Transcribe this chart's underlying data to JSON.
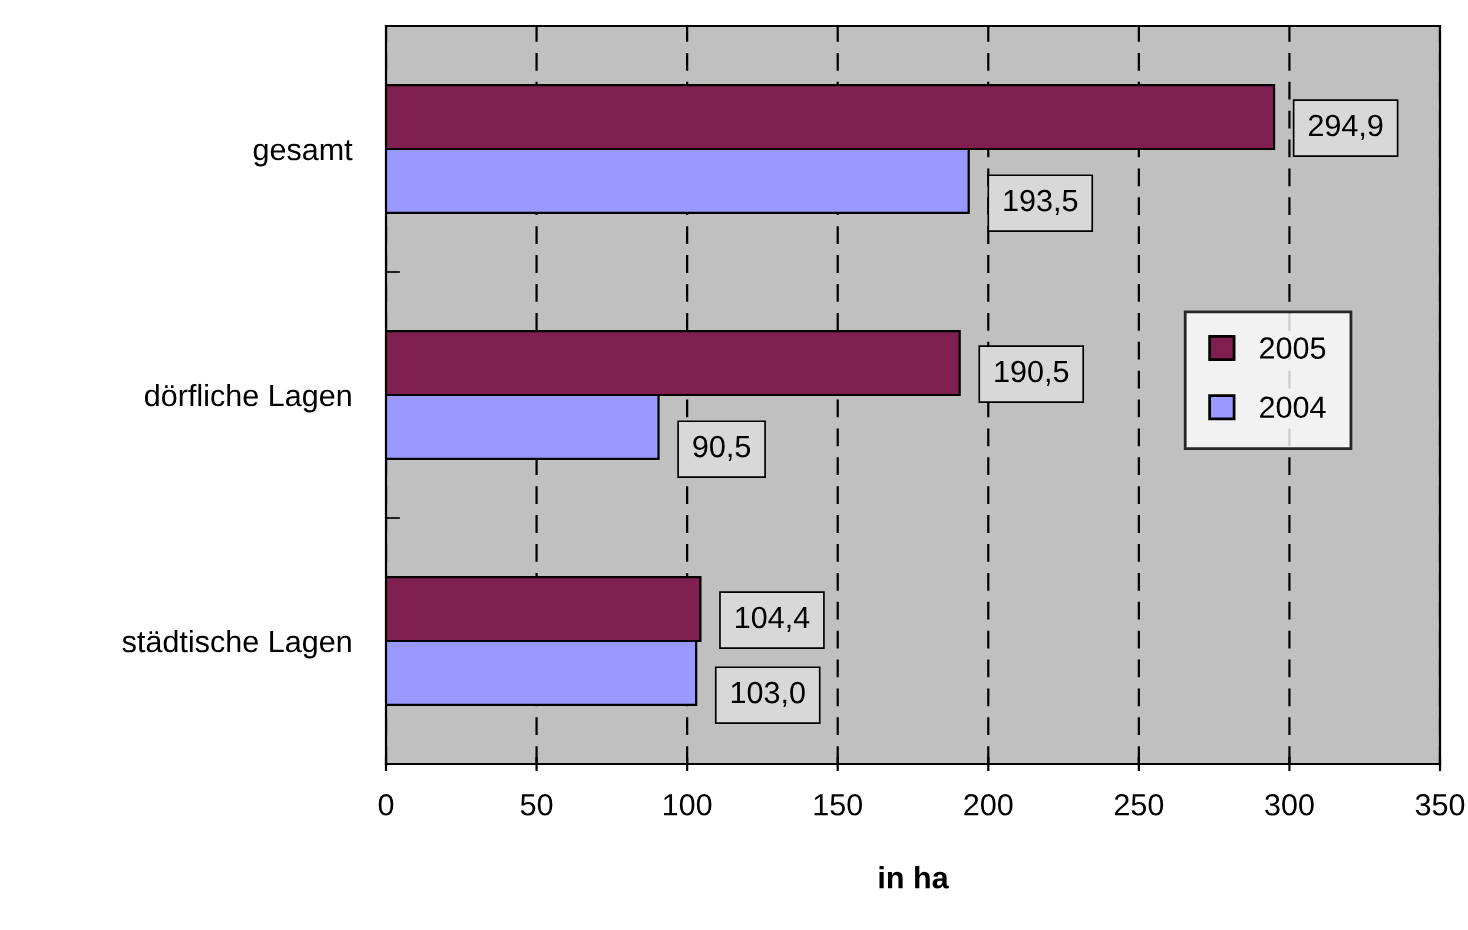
{
  "chart_data": {
    "type": "bar",
    "orientation": "horizontal",
    "categories": [
      "gesamt",
      "dörfliche Lagen",
      "städtische Lagen"
    ],
    "series": [
      {
        "name": "2005",
        "color": "#802050",
        "values": [
          294.9,
          190.5,
          104.4
        ],
        "value_labels": [
          "294,9",
          "190,5",
          "104,4"
        ]
      },
      {
        "name": "2004",
        "color": "#9999ff",
        "values": [
          193.5,
          90.5,
          103.0
        ],
        "value_labels": [
          "193,5",
          "90,5",
          "103,0"
        ]
      }
    ],
    "xlabel": "in ha",
    "xlim": [
      0,
      350
    ],
    "xticks": [
      0,
      50,
      100,
      150,
      200,
      250,
      300,
      350
    ],
    "grid": "x",
    "legend": "right"
  }
}
